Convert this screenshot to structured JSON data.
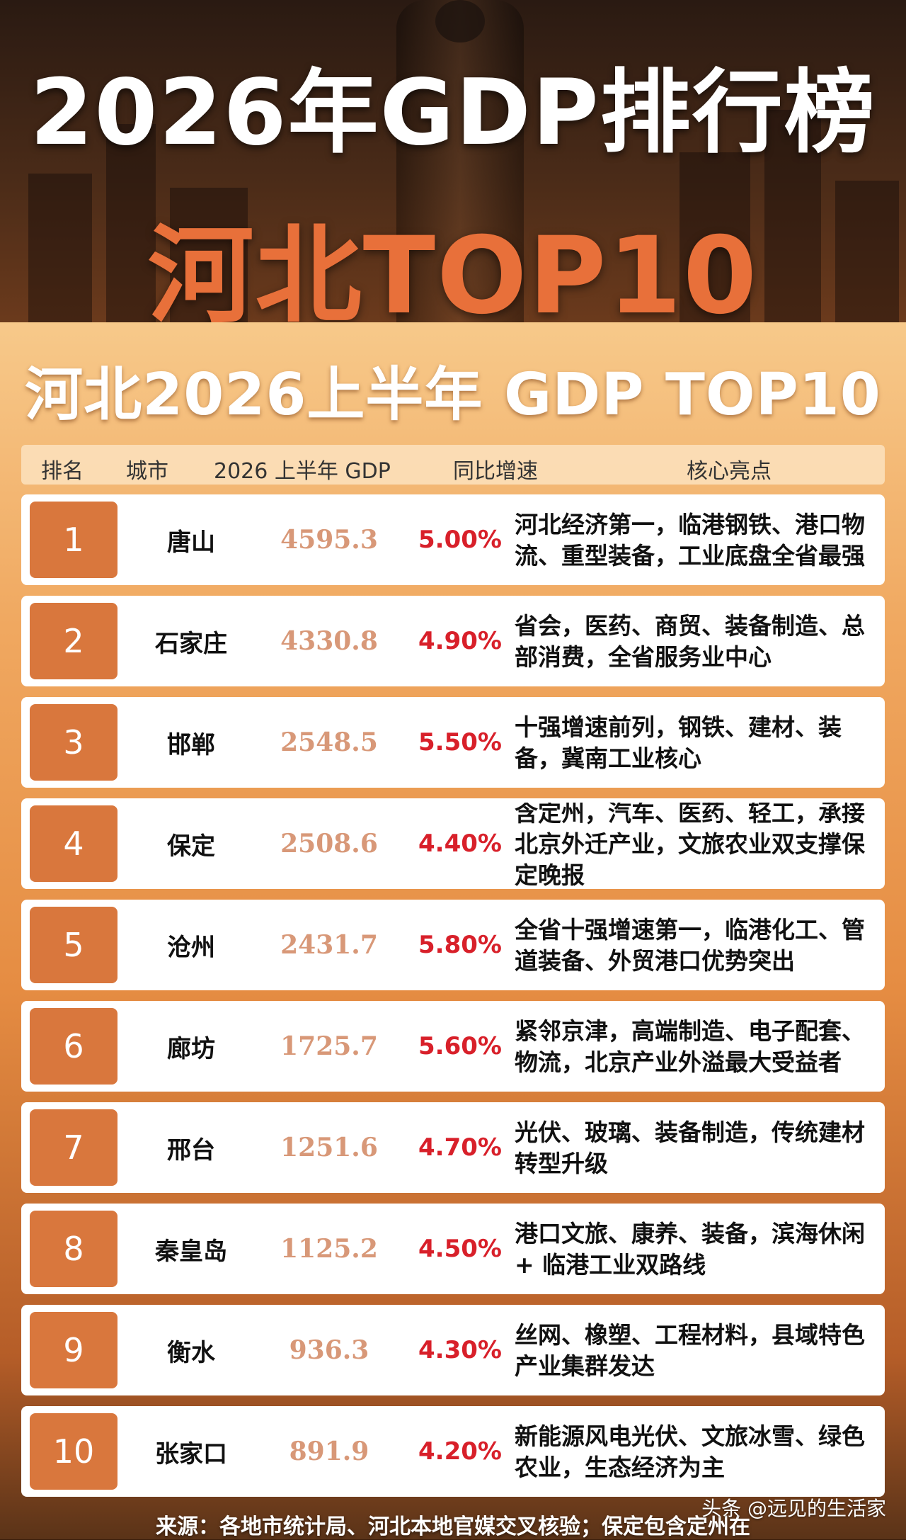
{
  "header": {
    "title": "2026年GDP排行榜",
    "subtitle": "河北TOP10"
  },
  "panel": {
    "title": "河北2026上半年 GDP TOP10"
  },
  "table": {
    "columns": [
      "排名",
      "城市",
      "2026 上半年 GDP",
      "同比增速",
      "核心亮点"
    ],
    "rows": [
      {
        "rank": "1",
        "city": "唐山",
        "gdp": "4595.3",
        "growth": "5.00%",
        "highlight": "河北经济第一，临港钢铁、港口物流、重型装备，工业底盘全省最强"
      },
      {
        "rank": "2",
        "city": "石家庄",
        "gdp": "4330.8",
        "growth": "4.90%",
        "highlight": "省会，医药、商贸、装备制造、总部消费，全省服务业中心"
      },
      {
        "rank": "3",
        "city": "邯郸",
        "gdp": "2548.5",
        "growth": "5.50%",
        "highlight": "十强增速前列，钢铁、建材、装备，冀南工业核心"
      },
      {
        "rank": "4",
        "city": "保定",
        "gdp": "2508.6",
        "growth": "4.40%",
        "highlight": "含定州，汽车、医药、轻工，承接北京外迁产业，文旅农业双支撑保定晚报"
      },
      {
        "rank": "5",
        "city": "沧州",
        "gdp": "2431.7",
        "growth": "5.80%",
        "highlight": "全省十强增速第一，临港化工、管道装备、外贸港口优势突出"
      },
      {
        "rank": "6",
        "city": "廊坊",
        "gdp": "1725.7",
        "growth": "5.60%",
        "highlight": "紧邻京津，高端制造、电子配套、物流，北京产业外溢最大受益者"
      },
      {
        "rank": "7",
        "city": "邢台",
        "gdp": "1251.6",
        "growth": "4.70%",
        "highlight": "光伏、玻璃、装备制造，传统建材转型升级"
      },
      {
        "rank": "8",
        "city": "秦皇岛",
        "gdp": "1125.2",
        "growth": "4.50%",
        "highlight": "港口文旅、康养、装备，滨海休闲 + 临港工业双路线"
      },
      {
        "rank": "9",
        "city": "衡水",
        "gdp": "936.3",
        "growth": "4.30%",
        "highlight": "丝网、橡塑、工程材料，县域特色产业集群发达"
      },
      {
        "rank": "10",
        "city": "张家口",
        "gdp": "891.9",
        "growth": "4.20%",
        "highlight": "新能源风电光伏、文旅冰雪、绿色农业，生态经济为主"
      }
    ]
  },
  "footer": {
    "source": "来源：各地市统计局、河北本地官媒交叉核验；保定包含定州在",
    "watermark": "头条 @远见的生活家"
  },
  "colors": {
    "accent": "#e8703a",
    "rank_badge": "#d9773d",
    "growth": "#d8202a",
    "gdp": "#d89878"
  }
}
